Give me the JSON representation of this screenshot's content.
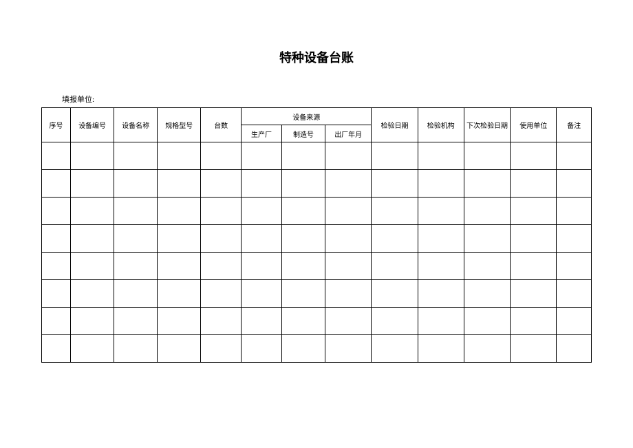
{
  "document": {
    "title": "特种设备台账",
    "form_label": "填报单位:",
    "title_fontsize": 18,
    "label_fontsize": 11,
    "cell_fontsize": 10,
    "border_color": "#000000",
    "background_color": "#ffffff"
  },
  "table": {
    "columns": [
      {
        "key": "seq",
        "label": "序号",
        "width": "5.0%"
      },
      {
        "key": "equip_no",
        "label": "设备编号",
        "width": "7.5%"
      },
      {
        "key": "equip_name",
        "label": "设备名称",
        "width": "7.5%"
      },
      {
        "key": "spec_model",
        "label": "规格型号",
        "width": "7.5%"
      },
      {
        "key": "qty",
        "label": "台数",
        "width": "7.0%"
      },
      {
        "key": "source_group",
        "label": "设备来源",
        "children": [
          {
            "key": "manufacturer",
            "label": "生产厂",
            "width": "7.0%"
          },
          {
            "key": "mfg_no",
            "label": "制造号",
            "width": "7.5%"
          },
          {
            "key": "factory_date",
            "label": "出厂年月",
            "width": "8.0%"
          }
        ]
      },
      {
        "key": "inspect_date",
        "label": "检验日期",
        "width": "8.0%"
      },
      {
        "key": "inspect_org",
        "label": "检验机构",
        "width": "8.0%"
      },
      {
        "key": "next_inspect_date",
        "label": "下次检验日期",
        "width": "8.0%"
      },
      {
        "key": "user_unit",
        "label": "使用单位",
        "width": "8.0%"
      },
      {
        "key": "remark",
        "label": "备注",
        "width": "6.0%"
      }
    ],
    "data_row_count": 8,
    "header_row_height": 25,
    "data_row_height": 40
  }
}
